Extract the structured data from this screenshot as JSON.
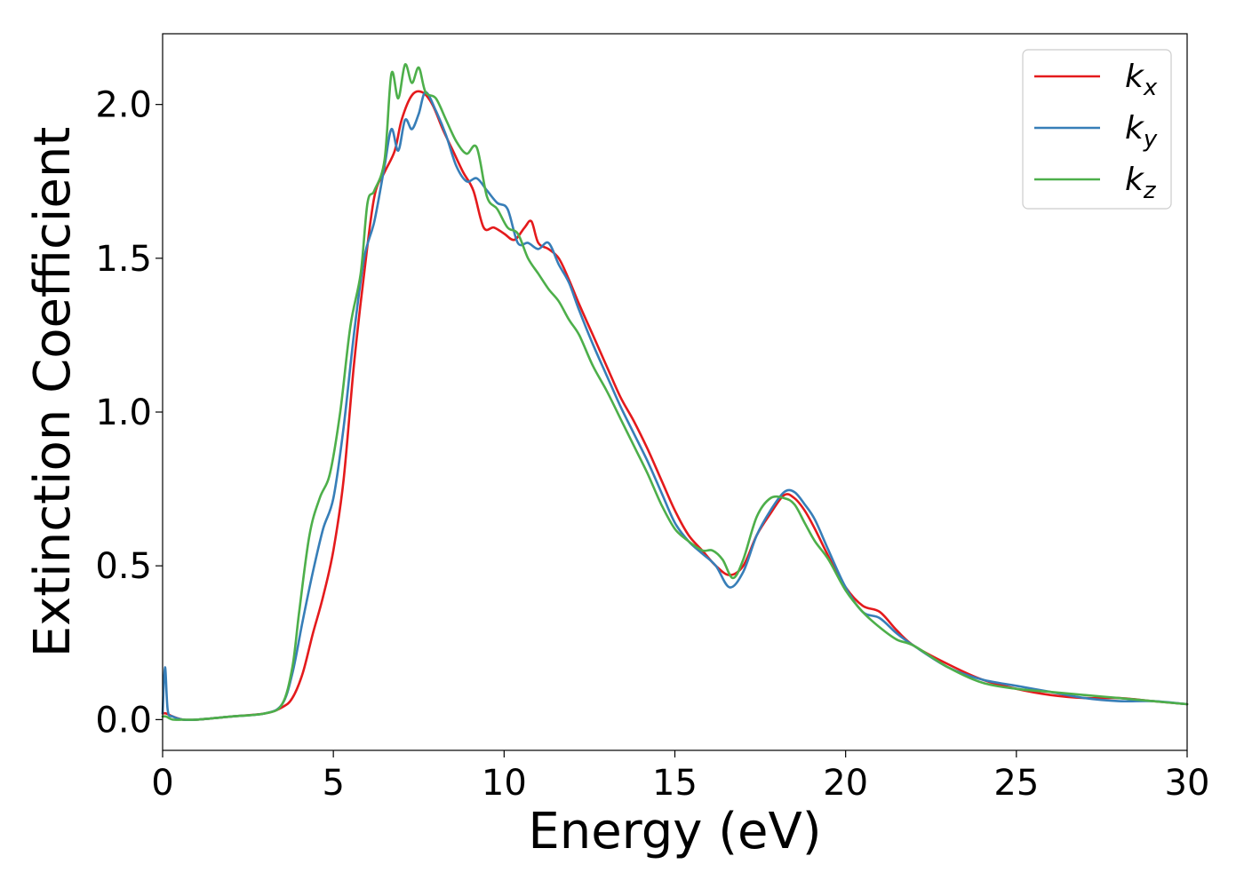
{
  "chart_data": {
    "type": "line",
    "title": "",
    "xlabel": "Energy (eV)",
    "ylabel": "Extinction Coefficient",
    "xlim": [
      0,
      30
    ],
    "ylim": [
      -0.1,
      2.23
    ],
    "xticks": [
      0,
      5,
      10,
      15,
      20,
      25,
      30
    ],
    "xtick_labels": [
      "0",
      "5",
      "10",
      "15",
      "20",
      "25",
      "30"
    ],
    "yticks": [
      0.0,
      0.5,
      1.0,
      1.5,
      2.0
    ],
    "ytick_labels": [
      "0.0",
      "0.5",
      "1.0",
      "1.5",
      "2.0"
    ],
    "grid": false,
    "legend_position": "top-right",
    "series": [
      {
        "name": "k",
        "subscript": "x",
        "color": "#e41a1c",
        "x": [
          0,
          0.1,
          0.3,
          0.6,
          1,
          2,
          3,
          3.5,
          3.8,
          4.1,
          4.4,
          4.7,
          5.0,
          5.3,
          5.6,
          5.9,
          6.2,
          6.5,
          6.8,
          7.0,
          7.3,
          7.6,
          7.9,
          8.2,
          8.5,
          8.8,
          9.1,
          9.4,
          9.7,
          10.0,
          10.3,
          10.6,
          10.8,
          11.0,
          11.3,
          11.6,
          11.9,
          12.2,
          12.6,
          13.0,
          13.4,
          13.8,
          14.2,
          14.6,
          15.0,
          15.4,
          15.8,
          16.2,
          16.6,
          17.0,
          17.4,
          17.8,
          18.2,
          18.5,
          18.8,
          19.1,
          19.5,
          20.0,
          20.5,
          21.0,
          21.5,
          22.0,
          23.0,
          24.0,
          25.0,
          26.0,
          27.0,
          28.0,
          29.0,
          30.0
        ],
        "values": [
          0.02,
          0.02,
          0.01,
          0.0,
          0.0,
          0.01,
          0.02,
          0.04,
          0.07,
          0.15,
          0.28,
          0.4,
          0.55,
          0.78,
          1.15,
          1.45,
          1.7,
          1.78,
          1.85,
          1.95,
          2.03,
          2.04,
          2.0,
          1.92,
          1.85,
          1.78,
          1.72,
          1.6,
          1.6,
          1.58,
          1.56,
          1.6,
          1.62,
          1.55,
          1.53,
          1.5,
          1.43,
          1.35,
          1.25,
          1.15,
          1.05,
          0.97,
          0.88,
          0.78,
          0.68,
          0.6,
          0.55,
          0.5,
          0.47,
          0.5,
          0.6,
          0.67,
          0.73,
          0.72,
          0.68,
          0.62,
          0.53,
          0.43,
          0.37,
          0.35,
          0.29,
          0.24,
          0.18,
          0.13,
          0.1,
          0.08,
          0.07,
          0.07,
          0.06,
          0.05
        ]
      },
      {
        "name": "k",
        "subscript": "y",
        "color": "#377eb8",
        "x": [
          0,
          0.07,
          0.15,
          0.3,
          0.6,
          1,
          2,
          3,
          3.5,
          3.8,
          4.1,
          4.4,
          4.7,
          5.0,
          5.3,
          5.6,
          5.9,
          6.2,
          6.5,
          6.7,
          6.9,
          7.1,
          7.3,
          7.5,
          7.7,
          8.0,
          8.3,
          8.6,
          8.9,
          9.2,
          9.5,
          9.8,
          10.1,
          10.4,
          10.7,
          11.0,
          11.3,
          11.6,
          11.9,
          12.2,
          12.6,
          13.0,
          13.4,
          13.8,
          14.2,
          14.6,
          15.0,
          15.4,
          15.8,
          16.2,
          16.6,
          17.0,
          17.4,
          17.8,
          18.2,
          18.5,
          18.8,
          19.1,
          19.5,
          20.0,
          20.5,
          21.0,
          21.5,
          22.0,
          23.0,
          24.0,
          25.0,
          26.0,
          27.0,
          28.0,
          29.0,
          30.0
        ],
        "values": [
          0.02,
          0.17,
          0.03,
          0.01,
          0.0,
          0.0,
          0.01,
          0.02,
          0.05,
          0.15,
          0.32,
          0.48,
          0.62,
          0.72,
          0.95,
          1.25,
          1.5,
          1.62,
          1.8,
          1.92,
          1.85,
          1.95,
          1.92,
          1.97,
          2.04,
          1.98,
          1.9,
          1.8,
          1.75,
          1.76,
          1.72,
          1.68,
          1.66,
          1.55,
          1.55,
          1.53,
          1.55,
          1.48,
          1.42,
          1.33,
          1.22,
          1.12,
          1.02,
          0.93,
          0.84,
          0.74,
          0.64,
          0.58,
          0.54,
          0.5,
          0.43,
          0.48,
          0.6,
          0.68,
          0.74,
          0.74,
          0.7,
          0.65,
          0.55,
          0.43,
          0.35,
          0.33,
          0.28,
          0.24,
          0.17,
          0.13,
          0.11,
          0.09,
          0.07,
          0.06,
          0.06,
          0.05
        ]
      },
      {
        "name": "k",
        "subscript": "z",
        "color": "#4daf4a",
        "x": [
          0,
          0.1,
          0.3,
          0.6,
          1,
          2,
          3,
          3.5,
          3.8,
          4.0,
          4.3,
          4.6,
          4.9,
          5.2,
          5.5,
          5.8,
          6.0,
          6.2,
          6.5,
          6.7,
          6.9,
          7.1,
          7.3,
          7.5,
          7.7,
          8.0,
          8.3,
          8.6,
          8.9,
          9.2,
          9.5,
          9.8,
          10.1,
          10.4,
          10.7,
          11.0,
          11.3,
          11.6,
          11.9,
          12.2,
          12.6,
          13.0,
          13.4,
          13.8,
          14.2,
          14.6,
          15.0,
          15.4,
          15.8,
          16.1,
          16.4,
          16.7,
          17.0,
          17.4,
          17.8,
          18.2,
          18.5,
          18.8,
          19.1,
          19.5,
          20.0,
          20.5,
          21.0,
          21.5,
          22.0,
          23.0,
          24.0,
          25.0,
          26.0,
          27.0,
          28.0,
          29.0,
          30.0
        ],
        "values": [
          0.01,
          0.01,
          0.0,
          0.0,
          0.0,
          0.01,
          0.02,
          0.05,
          0.17,
          0.35,
          0.6,
          0.72,
          0.8,
          1.0,
          1.28,
          1.45,
          1.68,
          1.72,
          1.82,
          2.1,
          2.02,
          2.13,
          2.07,
          2.12,
          2.04,
          2.02,
          1.95,
          1.88,
          1.84,
          1.86,
          1.7,
          1.66,
          1.6,
          1.58,
          1.5,
          1.45,
          1.4,
          1.36,
          1.3,
          1.25,
          1.15,
          1.07,
          0.98,
          0.89,
          0.8,
          0.7,
          0.62,
          0.58,
          0.55,
          0.55,
          0.52,
          0.46,
          0.52,
          0.66,
          0.72,
          0.72,
          0.7,
          0.64,
          0.58,
          0.52,
          0.42,
          0.35,
          0.3,
          0.26,
          0.24,
          0.17,
          0.12,
          0.1,
          0.09,
          0.08,
          0.07,
          0.06,
          0.05
        ]
      }
    ]
  }
}
